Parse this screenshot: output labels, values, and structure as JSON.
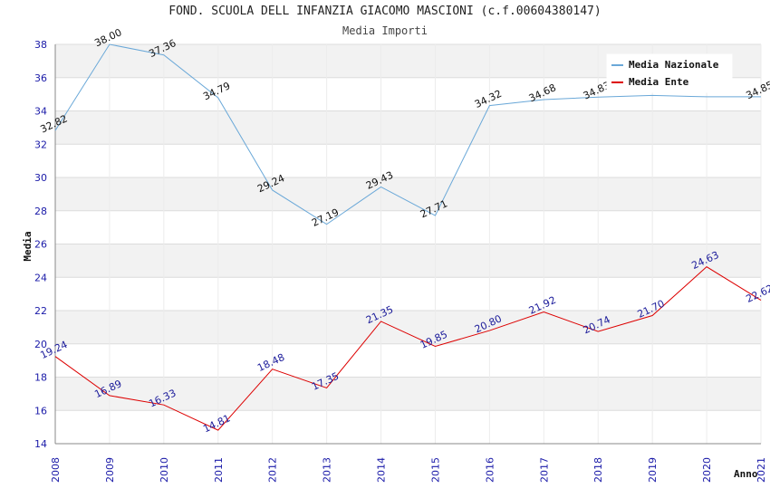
{
  "chart_data": {
    "type": "line",
    "title": "FOND. SCUOLA DELL INFANZIA GIACOMO MASCIONI (c.f.00604380147)",
    "subtitle": "Media Importi",
    "xlabel": "Anno",
    "ylabel": "Media",
    "x": [
      "2008",
      "2009",
      "2010",
      "2011",
      "2012",
      "2013",
      "2014",
      "2015",
      "2016",
      "2017",
      "2018",
      "2019",
      "2020",
      "2021"
    ],
    "ylim": [
      14,
      38
    ],
    "yticks": [
      14,
      16,
      18,
      20,
      22,
      24,
      26,
      28,
      30,
      32,
      34,
      36,
      38
    ],
    "grid": true,
    "legend_position": "top-right",
    "series": [
      {
        "name": "Media Nazionale",
        "color": "#6aa8d8",
        "values": [
          32.82,
          38.0,
          37.36,
          34.79,
          29.24,
          27.19,
          29.43,
          27.71,
          34.32,
          34.68,
          34.83,
          34.93,
          34.85,
          34.85
        ],
        "labels": [
          "32.82",
          "38.00",
          "37.36",
          "34.79",
          "29.24",
          "27.19",
          "29.43",
          "27.71",
          "34.32",
          "34.68",
          "34.83",
          "",
          "",
          "34.85"
        ]
      },
      {
        "name": "Media Ente",
        "color": "#dd0000",
        "values": [
          19.24,
          16.89,
          16.33,
          14.81,
          18.48,
          17.35,
          21.35,
          19.85,
          20.8,
          21.92,
          20.74,
          21.7,
          24.63,
          22.62
        ],
        "labels": [
          "19.24",
          "16.89",
          "16.33",
          "14.81",
          "18.48",
          "17.35",
          "21.35",
          "19.85",
          "20.80",
          "21.92",
          "20.74",
          "21.70",
          "24.63",
          "22.62"
        ]
      }
    ]
  }
}
